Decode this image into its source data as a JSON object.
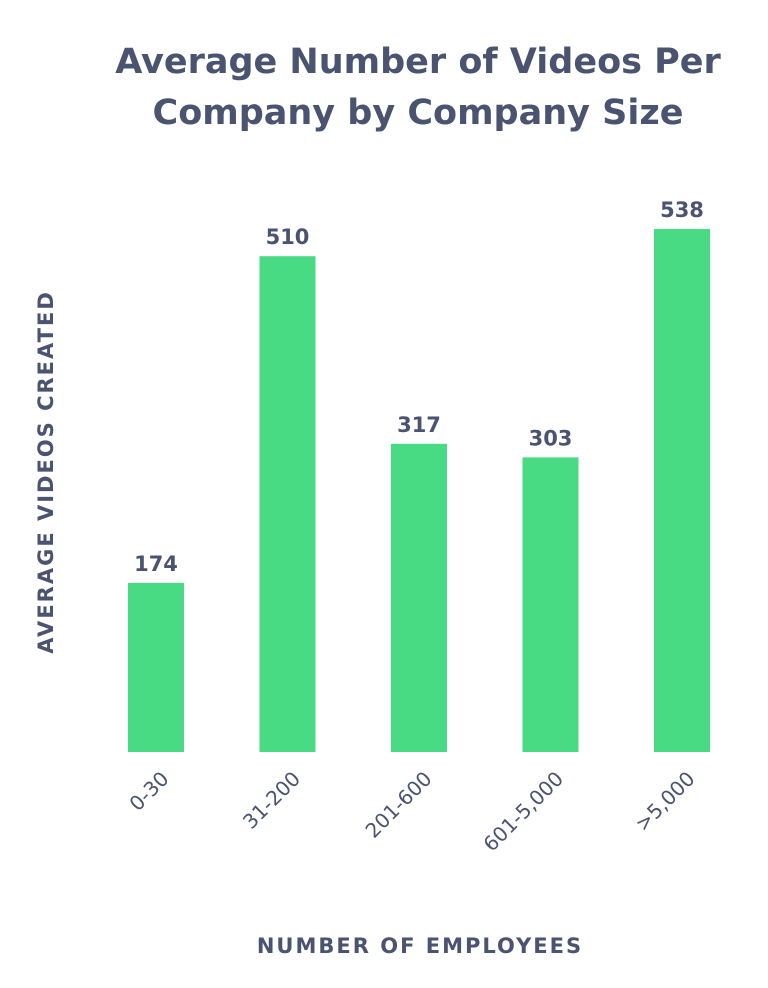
{
  "colors": {
    "bar": "#48DB84",
    "text": "#4A5370",
    "background": "#FFFFFF"
  },
  "chart_data": {
    "type": "bar",
    "title_lines": [
      "Average Number of Videos Per",
      "Company by Company Size"
    ],
    "xlabel": "NUMBER OF EMPLOYEES",
    "ylabel": "AVERAGE  VIDEOS CREATED",
    "categories": [
      "0-30",
      "31-200",
      "201-600",
      "601-5,000",
      ">5,000"
    ],
    "values": [
      174,
      510,
      317,
      303,
      538
    ],
    "data_labels": [
      "174",
      "510",
      "317",
      "303",
      "538"
    ],
    "ylim": [
      0,
      538
    ],
    "grid": false,
    "legend": "none"
  }
}
